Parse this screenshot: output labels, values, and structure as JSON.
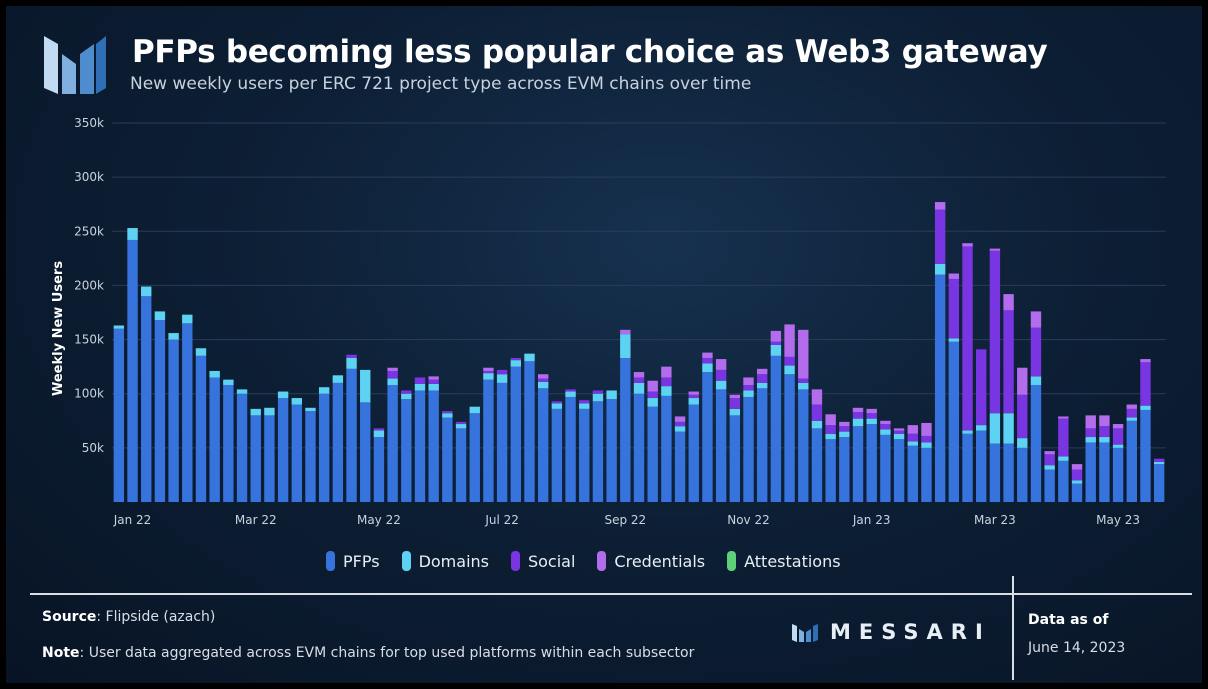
{
  "header": {
    "title": "PFPs becoming less popular choice as Web3 gateway",
    "subtitle": "New weekly users per ERC 721 project type across EVM chains over time"
  },
  "footer": {
    "source_label": "Source",
    "source_text": ": Flipside (azach)",
    "note_label": "Note",
    "note_text": ": User data aggregated across EVM chains for top used platforms within each subsector",
    "brand": "MESSARI",
    "data_as_of_label": "Data as of",
    "data_as_of_date": "June 14, 2023"
  },
  "colors": {
    "pfps": "#3773dd",
    "domains": "#5ed2f2",
    "social": "#7a35e2",
    "credentials": "#b36cec",
    "attestations": "#5fd07a",
    "grid": "#2a3d55",
    "axis_text": "#c9d3de"
  },
  "chart_data": {
    "type": "bar",
    "stacked": true,
    "title": "PFPs becoming less popular choice as Web3 gateway",
    "subtitle": "New weekly users per ERC 721 project type across EVM chains over time",
    "xlabel": "",
    "ylabel": "Weekly New Users",
    "ylim": [
      0,
      350000
    ],
    "y_ticks": [
      50000,
      100000,
      150000,
      200000,
      250000,
      300000,
      350000
    ],
    "y_tick_labels": [
      "50k",
      "100k",
      "150k",
      "200k",
      "250k",
      "300k",
      "350k"
    ],
    "x_tick_labels": [
      {
        "index": 1,
        "label": "Jan 22"
      },
      {
        "index": 10,
        "label": "Mar 22"
      },
      {
        "index": 19,
        "label": "May 22"
      },
      {
        "index": 28,
        "label": "Jul 22"
      },
      {
        "index": 37,
        "label": "Sep 22"
      },
      {
        "index": 46,
        "label": "Nov 22"
      },
      {
        "index": 55,
        "label": "Jan 23"
      },
      {
        "index": 64,
        "label": "Mar 23"
      },
      {
        "index": 73,
        "label": "May 23"
      }
    ],
    "legend": [
      "PFPs",
      "Domains",
      "Social",
      "Credentials",
      "Attestations"
    ],
    "legend_position": "bottom",
    "series": [
      {
        "name": "PFPs",
        "values": [
          160000,
          242000,
          190000,
          168000,
          150000,
          165000,
          135000,
          115000,
          108000,
          100000,
          80000,
          80000,
          96000,
          90000,
          84000,
          100000,
          110000,
          123000,
          92000,
          60000,
          108000,
          95000,
          103000,
          103000,
          78000,
          68000,
          82000,
          113000,
          110000,
          125000,
          130000,
          105000,
          86000,
          97000,
          86000,
          93000,
          95000,
          133000,
          100000,
          88000,
          98000,
          65000,
          90000,
          120000,
          104000,
          80000,
          97000,
          105000,
          135000,
          118000,
          104000,
          68000,
          58000,
          60000,
          70000,
          72000,
          62000,
          58000,
          52000,
          50000,
          210000,
          148000,
          63000,
          66000,
          54000,
          54000,
          50000,
          108000,
          30000,
          38000,
          17000,
          55000,
          55000,
          50000,
          75000,
          85000,
          35000
        ]
      },
      {
        "name": "Domains",
        "values": [
          3000,
          11000,
          9000,
          8000,
          6000,
          8000,
          7000,
          6000,
          5000,
          4000,
          6000,
          7000,
          6000,
          6000,
          3000,
          6000,
          7000,
          10000,
          30000,
          6000,
          6000,
          5000,
          6000,
          6000,
          4000,
          4000,
          6000,
          6000,
          8000,
          6000,
          7000,
          6000,
          5000,
          5000,
          5000,
          7000,
          8000,
          22000,
          10000,
          8000,
          9000,
          5000,
          6000,
          8000,
          8000,
          6000,
          6000,
          5000,
          10000,
          8000,
          6000,
          7000,
          5000,
          5000,
          7000,
          5000,
          5000,
          5000,
          4000,
          5000,
          10000,
          3000,
          3000,
          5000,
          28000,
          28000,
          9000,
          8000,
          4000,
          4000,
          3000,
          5000,
          5000,
          3000,
          3000,
          4000,
          2000
        ]
      },
      {
        "name": "Social",
        "values": [
          0,
          0,
          0,
          0,
          0,
          0,
          0,
          0,
          0,
          0,
          0,
          0,
          0,
          0,
          0,
          0,
          0,
          3000,
          0,
          2000,
          7000,
          3000,
          6000,
          4000,
          2000,
          2000,
          0,
          2000,
          4000,
          2000,
          0,
          3000,
          2000,
          2000,
          3000,
          3000,
          0,
          0,
          5000,
          6000,
          8000,
          4000,
          3000,
          5000,
          10000,
          10000,
          5000,
          8000,
          3000,
          8000,
          4000,
          15000,
          8000,
          5000,
          6000,
          5000,
          5000,
          3000,
          7000,
          6000,
          50000,
          55000,
          170000,
          70000,
          150000,
          95000,
          40000,
          45000,
          10000,
          35000,
          10000,
          8000,
          10000,
          15000,
          8000,
          40000,
          3000
        ]
      },
      {
        "name": "Credentials",
        "values": [
          0,
          0,
          0,
          0,
          0,
          0,
          0,
          0,
          0,
          0,
          0,
          0,
          0,
          0,
          0,
          0,
          0,
          0,
          0,
          0,
          3000,
          0,
          0,
          3000,
          0,
          0,
          0,
          3000,
          0,
          0,
          0,
          4000,
          0,
          0,
          0,
          0,
          0,
          4000,
          5000,
          10000,
          10000,
          5000,
          3000,
          5000,
          10000,
          3000,
          7000,
          5000,
          10000,
          30000,
          45000,
          14000,
          10000,
          4000,
          4000,
          4000,
          3000,
          2000,
          8000,
          12000,
          7000,
          5000,
          3000,
          0,
          2000,
          15000,
          25000,
          15000,
          3000,
          2000,
          5000,
          12000,
          10000,
          4000,
          4000,
          3000,
          0
        ]
      },
      {
        "name": "Attestations",
        "values": [
          0,
          0,
          0,
          0,
          0,
          0,
          0,
          0,
          0,
          0,
          0,
          0,
          0,
          0,
          0,
          0,
          0,
          0,
          0,
          0,
          0,
          0,
          0,
          0,
          0,
          0,
          0,
          0,
          0,
          0,
          0,
          0,
          0,
          0,
          0,
          0,
          0,
          0,
          0,
          0,
          0,
          0,
          0,
          0,
          0,
          0,
          0,
          0,
          0,
          0,
          0,
          0,
          0,
          0,
          0,
          0,
          0,
          0,
          0,
          0,
          0,
          0,
          0,
          0,
          0,
          0,
          0,
          0,
          0,
          0,
          0,
          0,
          0,
          0,
          0,
          0,
          0
        ]
      }
    ]
  }
}
